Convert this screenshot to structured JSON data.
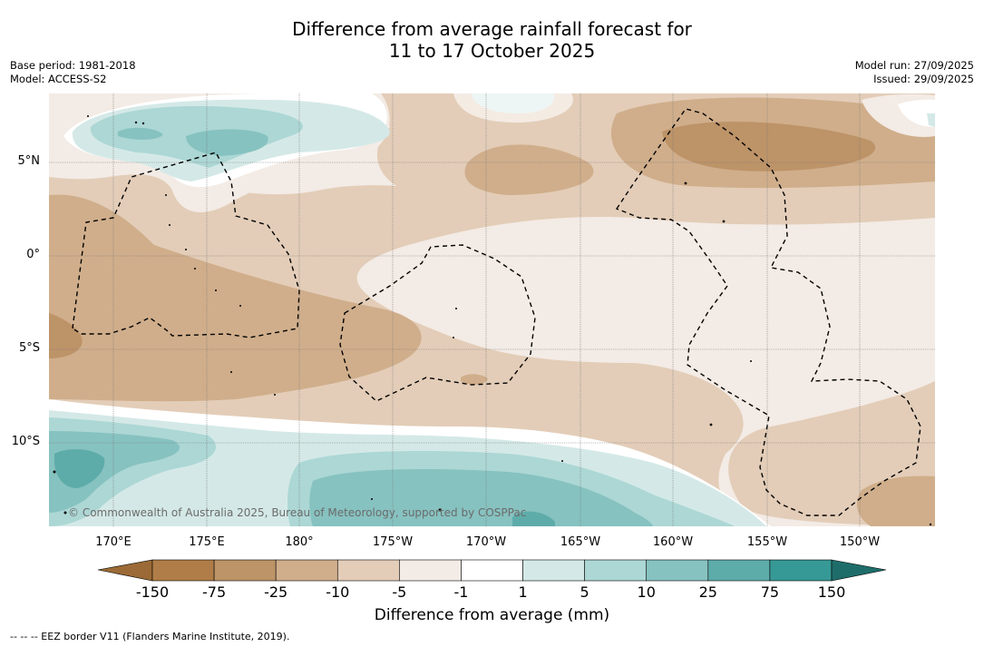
{
  "title_line1": "Difference from average rainfall forecast for",
  "title_line2": "11 to 17 October 2025",
  "base_period": "Base period: 1981-2018",
  "model": "Model: ACCESS-S2",
  "model_run": "Model run: 27/09/2025",
  "issued": "Issued: 29/09/2025",
  "copyright": "© Commonwealth of Australia 2025, Bureau of Meteorology, supported by COSPPac",
  "lat_labels": [
    "5°N",
    "0°",
    "5°S",
    "10°S"
  ],
  "lon_labels": [
    "170°E",
    "175°E",
    "180°",
    "175°W",
    "170°W",
    "165°W",
    "160°W",
    "155°W",
    "150°W"
  ],
  "colorbar": {
    "title": "Difference from average (mm)",
    "ticks": [
      "-150",
      "-75",
      "-25",
      "-10",
      "-5",
      "-1",
      "1",
      "5",
      "10",
      "25",
      "75",
      "150"
    ],
    "colors": [
      "#b07d48",
      "#bd9368",
      "#d0ae8b",
      "#e3cdb8",
      "#f3ebe5",
      "#ffffff",
      "#d4e9e7",
      "#acd7d5",
      "#86c2c0",
      "#5eacaa",
      "#379996",
      "#217d7a"
    ]
  },
  "footer": "--  --  -- EEZ border V11 (Flanders Marine Institute, 2019).",
  "colors": {
    "dry_strong": "#bd9368",
    "dry_moderate": "#d0ae8b",
    "dry_light": "#e3cdb8",
    "dry_faint": "#f3ebe5",
    "wet_light": "#d4e9e7",
    "wet_moderate": "#acd7d5",
    "wet_strong": "#86c2c0",
    "wet_very_strong": "#5eacaa"
  }
}
